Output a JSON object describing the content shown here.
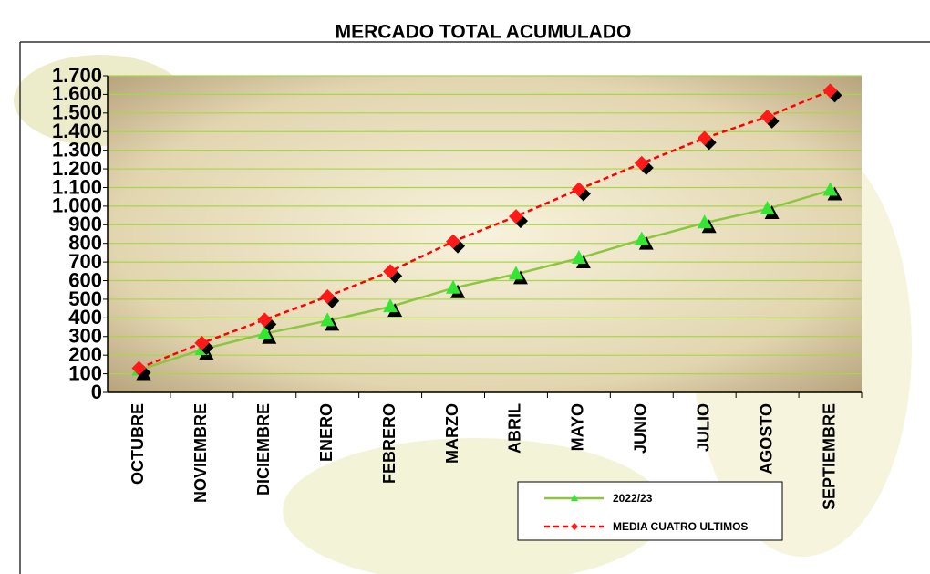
{
  "chart_data": {
    "type": "line",
    "title": "MERCADO TOTAL ACUMULADO",
    "categories": [
      "OCTUBRE",
      "NOVIEMBRE",
      "DICIEMBRE",
      "ENERO",
      "FEBRERO",
      "MARZO",
      "ABRIL",
      "MAYO",
      "JUNIO",
      "JULIO",
      "AGOSTO",
      "SEPTIEMBRE"
    ],
    "series": [
      {
        "name": "2022/23",
        "color": "#8cc63f",
        "marker_color": "#33e633",
        "values": [
          120,
          230,
          315,
          385,
          460,
          560,
          635,
          720,
          820,
          910,
          985,
          1085
        ]
      },
      {
        "name": "MEDIA CUATRO ULTIMOS",
        "color": "#ff0000",
        "marker_color": "#ff1a1a",
        "values": [
          130,
          265,
          390,
          515,
          650,
          810,
          945,
          1090,
          1230,
          1365,
          1480,
          1620
        ]
      }
    ],
    "ylim": [
      0,
      1700
    ],
    "yticks": [
      0,
      100,
      200,
      300,
      400,
      500,
      600,
      700,
      800,
      900,
      {
        "value": 1000,
        "label": "1.000"
      },
      {
        "value": 1100,
        "label": "1.100"
      },
      {
        "value": 1200,
        "label": "1.200"
      },
      {
        "value": 1300,
        "label": "1.300"
      },
      {
        "value": 1400,
        "label": "1.400"
      },
      {
        "value": 1500,
        "label": "1.500"
      },
      {
        "value": 1600,
        "label": "1.600"
      },
      {
        "value": 1700,
        "label": "1.700"
      }
    ],
    "grid": true
  }
}
